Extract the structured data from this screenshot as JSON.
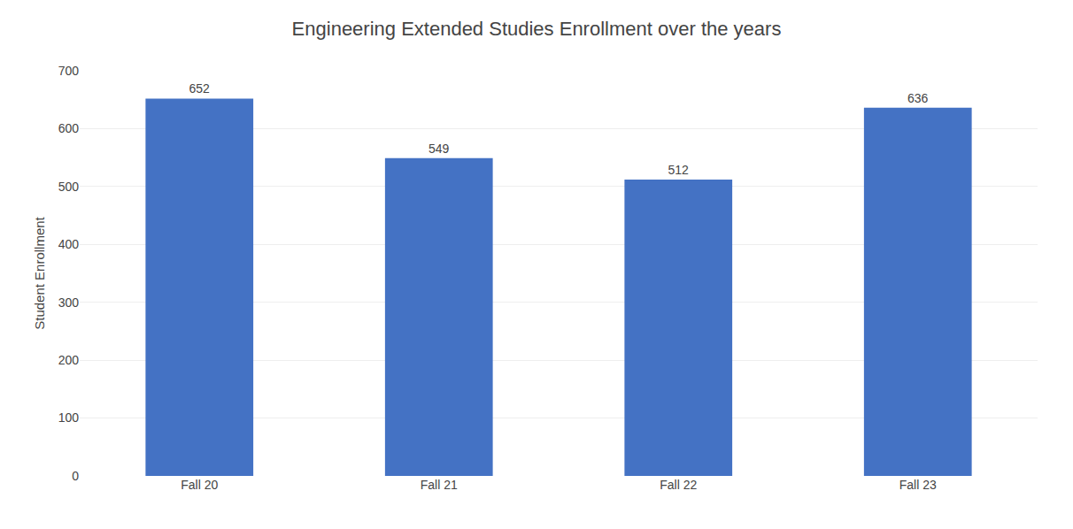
{
  "chart_data": {
    "type": "bar",
    "title": "Engineering Extended Studies Enrollment over the years",
    "ylabel": "Student Enrollment",
    "categories": [
      "Fall 20",
      "Fall 21",
      "Fall 22",
      "Fall 23"
    ],
    "values": [
      652,
      549,
      512,
      636
    ],
    "color": "#4472C4",
    "ylim": [
      0,
      700
    ],
    "yticks": [
      0,
      100,
      200,
      300,
      400,
      500,
      600,
      700
    ],
    "grid": true,
    "data_labels": true
  }
}
